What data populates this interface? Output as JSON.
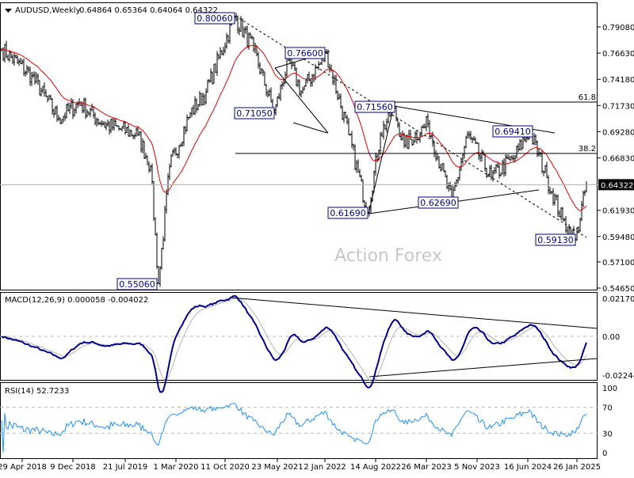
{
  "header": {
    "symbol": "AUDUSD,Weekly",
    "ohlc": "0.64864 0.65364 0.64064 0.64322"
  },
  "watermark": "Action Forex",
  "macd": {
    "label": "MACD(12,26,9) 0.000058 -0.004022",
    "ticks": [
      "0.021701",
      "0.00",
      "-0.022445"
    ]
  },
  "rsi": {
    "label": "RSI(14) 52.7233",
    "ticks": [
      "100",
      "70",
      "30",
      "0"
    ]
  },
  "fib": {
    "f618": "61.8",
    "f382": "38.2"
  },
  "current_price": "0.64322",
  "annotations": [
    "0.80060",
    "0.76600",
    "0.71050",
    "0.71560",
    "0.61690",
    "0.62690",
    "0.69410",
    "0.59130",
    "0.55060"
  ],
  "chart_data": {
    "type": "ohlc",
    "title": "AUDUSD, Weekly",
    "ylim": [
      0.5465,
      0.804
    ],
    "y_ticks": [
      "0.79080",
      "0.76630",
      "0.74180",
      "0.71730",
      "0.69280",
      "0.66830",
      "0.61930",
      "0.59480",
      "0.57100",
      "0.54650"
    ],
    "x_ticks": [
      "29 Apr 2018",
      "9 Dec 2018",
      "21 Jul 2019",
      "1 Mar 2020",
      "11 Oct 2020",
      "23 May 2021",
      "2 Jan 2022",
      "14 Aug 2022",
      "26 Mar 2023",
      "5 Nov 2023",
      "16 Jun 2024",
      "26 Jan 2025"
    ],
    "x_tick_weeks": [
      13,
      45,
      78,
      110,
      141,
      174,
      204,
      236,
      268,
      300,
      332,
      363
    ],
    "weeks_total": 370,
    "close_anchors_week_price": [
      [
        0,
        0.77
      ],
      [
        19,
        0.745
      ],
      [
        36,
        0.705
      ],
      [
        49,
        0.72
      ],
      [
        64,
        0.7
      ],
      [
        86,
        0.69
      ],
      [
        94,
        0.66
      ],
      [
        99,
        0.5506
      ],
      [
        106,
        0.66
      ],
      [
        119,
        0.71
      ],
      [
        129,
        0.73
      ],
      [
        147,
        0.8006
      ],
      [
        159,
        0.77
      ],
      [
        172,
        0.7105
      ],
      [
        181,
        0.76
      ],
      [
        189,
        0.73
      ],
      [
        205,
        0.766
      ],
      [
        219,
        0.69
      ],
      [
        231,
        0.6169
      ],
      [
        239,
        0.69
      ],
      [
        247,
        0.7156
      ],
      [
        254,
        0.68
      ],
      [
        269,
        0.7
      ],
      [
        284,
        0.6269
      ],
      [
        294,
        0.69
      ],
      [
        309,
        0.65
      ],
      [
        324,
        0.67
      ],
      [
        333,
        0.6941
      ],
      [
        344,
        0.65
      ],
      [
        354,
        0.61
      ],
      [
        362,
        0.5913
      ],
      [
        369,
        0.6432
      ]
    ],
    "fib_levels": {
      "61.8": 0.7205,
      "38.2": 0.6724
    },
    "ma_period": 55,
    "macd_params": [
      12,
      26,
      9
    ],
    "rsi_period": 14
  }
}
